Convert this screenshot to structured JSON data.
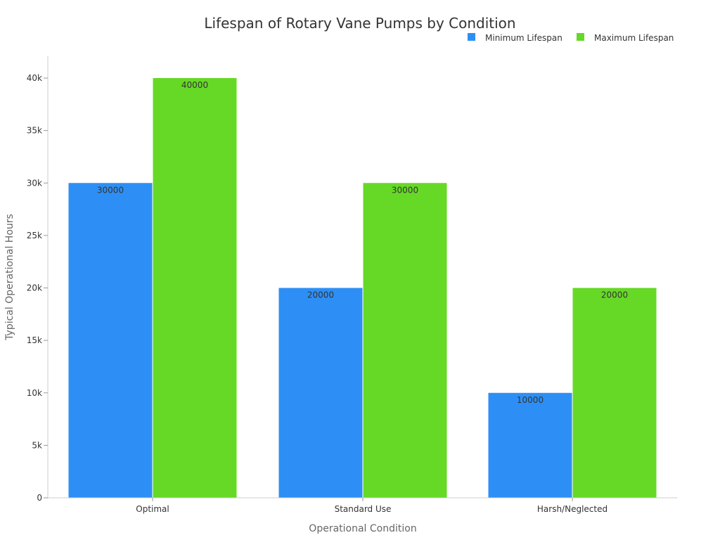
{
  "chart_data": {
    "type": "bar",
    "title": "Lifespan of Rotary Vane Pumps by Condition",
    "xlabel": "Operational Condition",
    "ylabel": "Typical Operational Hours",
    "categories": [
      "Optimal",
      "Standard Use",
      "Harsh/Neglected"
    ],
    "series": [
      {
        "name": "Minimum Lifespan",
        "values": [
          30000,
          20000,
          10000
        ],
        "color": "#2d8ff5"
      },
      {
        "name": "Maximum Lifespan",
        "values": [
          40000,
          30000,
          20000
        ],
        "color": "#66d926"
      }
    ],
    "ylim": [
      0,
      42000
    ],
    "yticks": [
      0,
      5000,
      10000,
      15000,
      20000,
      25000,
      30000,
      35000,
      40000
    ],
    "ytick_labels": [
      "0",
      "5k",
      "10k",
      "15k",
      "20k",
      "25k",
      "30k",
      "35k",
      "40k"
    ],
    "grid": false,
    "legend_position": "top-right"
  }
}
